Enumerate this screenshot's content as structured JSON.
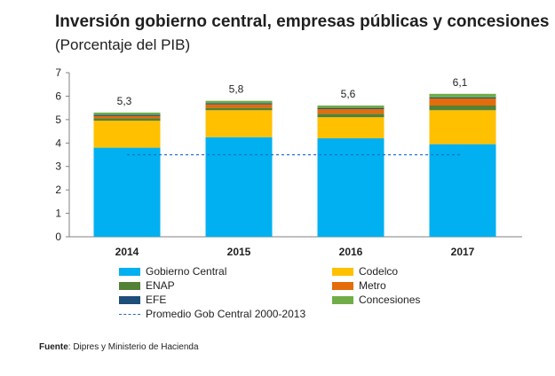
{
  "header": {
    "title": "Inversión gobierno central, empresas públicas y concesiones",
    "subtitle": "(Porcentaje del PIB)"
  },
  "source": {
    "label": "Fuente",
    "text": ": Dipres y Ministerio de Hacienda"
  },
  "colors": {
    "gobierno_central": "#00B0F0",
    "codelco": "#FFC000",
    "enap": "#538135",
    "metro": "#E46C0A",
    "efe": "#1F4E79",
    "concesiones": "#70AD47",
    "promedio": "#1F6FC4",
    "axis": "#808080",
    "text": "#1f1f1f"
  },
  "chart_data": {
    "type": "bar",
    "stacked": true,
    "title": "Inversión gobierno central, empresas públicas y concesiones",
    "subtitle": "(Porcentaje del PIB)",
    "categories": [
      "2014",
      "2015",
      "2016",
      "2017"
    ],
    "ylim": [
      0,
      7
    ],
    "yticks": [
      "0",
      "1",
      "2",
      "3",
      "4",
      "5",
      "6",
      "7"
    ],
    "grid": false,
    "totals": [
      "5,3",
      "5,8",
      "5,6",
      "6,1"
    ],
    "series": [
      {
        "name": "Gobierno Central",
        "key": "gobierno_central",
        "values": [
          3.8,
          4.25,
          4.2,
          3.95
        ]
      },
      {
        "name": "Codelco",
        "key": "codelco",
        "values": [
          1.15,
          1.15,
          0.9,
          1.45
        ]
      },
      {
        "name": "ENAP",
        "key": "enap",
        "values": [
          0.1,
          0.1,
          0.15,
          0.2
        ]
      },
      {
        "name": "Metro",
        "key": "metro",
        "values": [
          0.1,
          0.15,
          0.2,
          0.3
        ]
      },
      {
        "name": "EFE",
        "key": "efe",
        "values": [
          0.05,
          0.05,
          0.05,
          0.05
        ]
      },
      {
        "name": "Concesiones",
        "key": "concesiones",
        "values": [
          0.1,
          0.1,
          0.1,
          0.15
        ]
      }
    ],
    "reference_line": {
      "name": "Promedio Gob Central 2000-2013",
      "value": 3.5
    },
    "legend_position": "bottom"
  }
}
